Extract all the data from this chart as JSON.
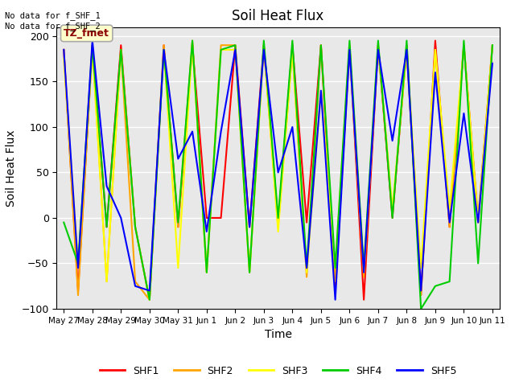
{
  "title": "Soil Heat Flux",
  "xlabel": "Time",
  "ylabel": "Soil Heat Flux",
  "ylim": [
    -100,
    210
  ],
  "yticks": [
    -100,
    -50,
    0,
    50,
    100,
    150,
    200
  ],
  "fig_bg_color": "#f0f0f0",
  "plot_bg_color": "#e8e8e8",
  "annotation_text": "No data for f_SHF_1\nNo data for f_SHF_2",
  "legend_label": "TZ_fmet",
  "series": {
    "SHF1": {
      "color": "red",
      "x": [
        0,
        1,
        2,
        3,
        4,
        5,
        6,
        7,
        8,
        9,
        10,
        11,
        12,
        13,
        14,
        15,
        16,
        17,
        18,
        19,
        20,
        21,
        22,
        23,
        24,
        25,
        26,
        27,
        28,
        29,
        30
      ],
      "y": [
        185,
        -80,
        190,
        -10,
        190,
        -10,
        -90,
        190,
        -10,
        190,
        0,
        0,
        190,
        -10,
        190,
        -5,
        190,
        -5,
        190,
        -80,
        190,
        -90,
        190,
        0,
        190,
        -85,
        195,
        -10,
        190,
        -5,
        190
      ]
    },
    "SHF2": {
      "color": "orange",
      "x": [
        0,
        1,
        2,
        3,
        4,
        5,
        6,
        7,
        8,
        9,
        10,
        11,
        12,
        13,
        14,
        15,
        16,
        17,
        18,
        19,
        20,
        21,
        22,
        23,
        24,
        25,
        26,
        27,
        28,
        29,
        30
      ],
      "y": [
        185,
        -85,
        190,
        -70,
        185,
        -70,
        -90,
        190,
        -10,
        195,
        -60,
        190,
        190,
        -60,
        190,
        -10,
        185,
        -65,
        190,
        -70,
        185,
        -65,
        190,
        5,
        185,
        -85,
        185,
        -10,
        190,
        0,
        190
      ]
    },
    "SHF3": {
      "color": "yellow",
      "x": [
        0,
        1,
        2,
        3,
        4,
        5,
        6,
        7,
        8,
        9,
        10,
        11,
        12,
        13,
        14,
        15,
        16,
        17,
        18,
        19,
        20,
        21,
        22,
        23,
        24,
        25,
        26,
        27,
        28,
        29,
        30
      ],
      "y": [
        175,
        -50,
        185,
        -70,
        185,
        -10,
        -90,
        185,
        -55,
        190,
        -60,
        185,
        185,
        -60,
        190,
        -15,
        185,
        -60,
        140,
        -55,
        190,
        -60,
        190,
        10,
        185,
        -55,
        185,
        10,
        190,
        -5,
        190
      ]
    },
    "SHF4": {
      "color": "#00cc00",
      "x": [
        0,
        1,
        2,
        3,
        4,
        5,
        6,
        7,
        8,
        9,
        10,
        11,
        12,
        13,
        14,
        15,
        16,
        17,
        18,
        19,
        20,
        21,
        22,
        23,
        24,
        25,
        26,
        27,
        28,
        29,
        30
      ],
      "y": [
        -5,
        -50,
        190,
        -10,
        185,
        -10,
        -90,
        185,
        -5,
        195,
        -60,
        185,
        190,
        -60,
        195,
        0,
        195,
        -55,
        190,
        -55,
        195,
        -55,
        195,
        0,
        195,
        -100,
        -75,
        -70,
        195,
        -50,
        190
      ]
    },
    "SHF5": {
      "color": "blue",
      "x": [
        0,
        1,
        2,
        3,
        4,
        5,
        6,
        7,
        8,
        9,
        10,
        11,
        12,
        13,
        14,
        15,
        16,
        17,
        18,
        19,
        20,
        21,
        22,
        23,
        24,
        25,
        26,
        27,
        28,
        29,
        30
      ],
      "y": [
        185,
        -55,
        195,
        35,
        0,
        -75,
        -80,
        185,
        65,
        95,
        -15,
        95,
        185,
        -10,
        185,
        50,
        100,
        -55,
        140,
        -90,
        185,
        -60,
        185,
        85,
        185,
        -80,
        160,
        -5,
        115,
        -5,
        170
      ]
    }
  },
  "xtick_labels": [
    "May 27",
    "May 28",
    "May 29",
    "May 30",
    "May 31",
    "Jun 1",
    "Jun 2",
    "Jun 3",
    "Jun 4",
    "Jun 5",
    "Jun 6",
    "Jun 7",
    "Jun 8",
    "Jun 9",
    "Jun 10",
    "Jun 11"
  ],
  "xtick_positions": [
    0,
    2,
    4,
    6,
    8,
    10,
    12,
    14,
    16,
    18,
    20,
    22,
    24,
    26,
    28,
    30
  ]
}
